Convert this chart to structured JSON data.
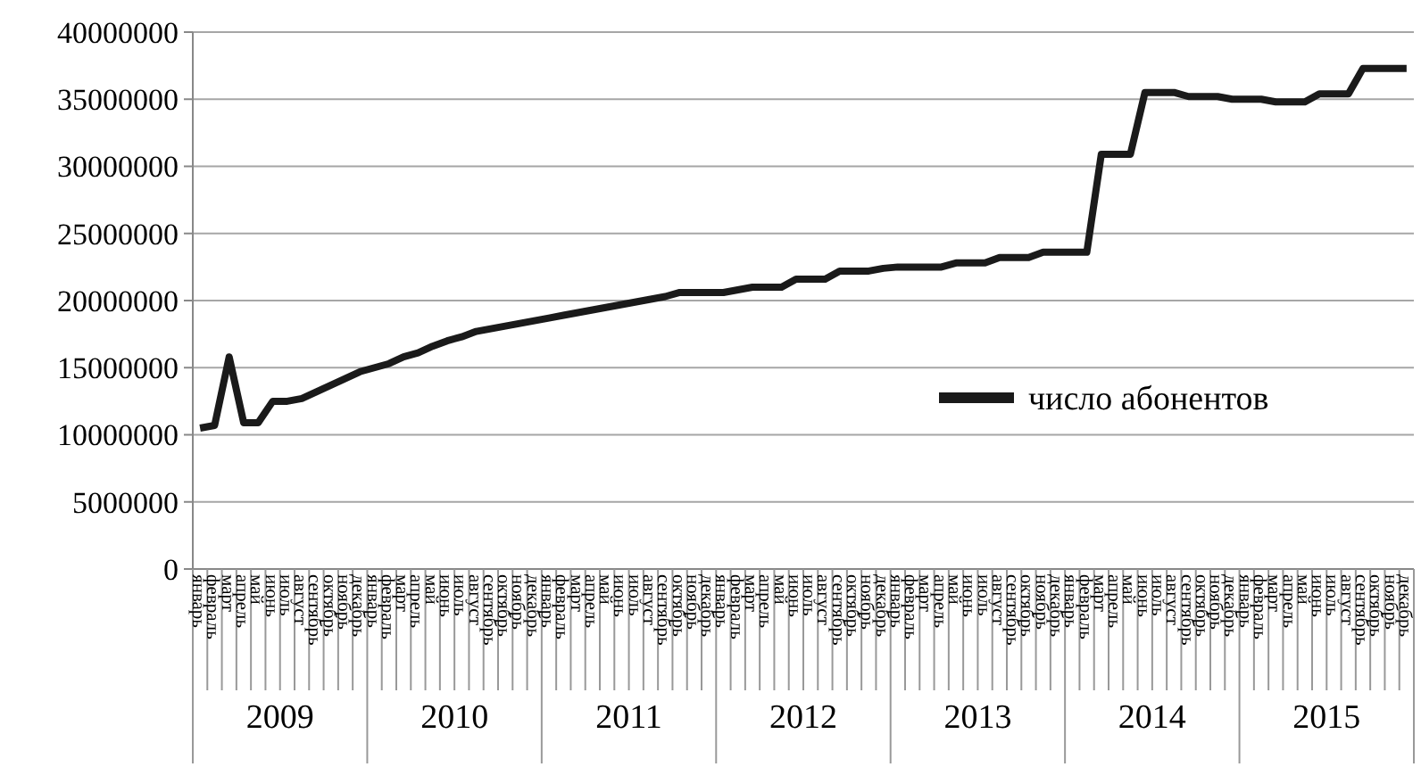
{
  "chart_data": {
    "type": "line",
    "categories": [
      "январь",
      "февраль",
      "март",
      "апрель",
      "май",
      "июнь",
      "июль",
      "август",
      "сентябрь",
      "октябрь",
      "ноябрь",
      "декабрь",
      "январь",
      "февраль",
      "март",
      "апрель",
      "май",
      "июнь",
      "июль",
      "август",
      "сентябрь",
      "октябрь",
      "ноябрь",
      "декабрь",
      "январь",
      "февраль",
      "март",
      "апрель",
      "май",
      "июнь",
      "июль",
      "август",
      "сентябрь",
      "октябрь",
      "ноябрь",
      "декабрь",
      "январь",
      "февраль",
      "март",
      "апрель",
      "май",
      "июнь",
      "июль",
      "август",
      "сентябрь",
      "октябрь",
      "ноябрь",
      "декабрь",
      "январь",
      "февраль",
      "март",
      "апрель",
      "май",
      "июнь",
      "июль",
      "август",
      "сентябрь",
      "октябрь",
      "ноябрь",
      "декабрь",
      "январь",
      "февраль",
      "март",
      "апрель",
      "май",
      "июнь",
      "июль",
      "август",
      "сентябрь",
      "октябрь",
      "ноябрь",
      "декабрь",
      "январь",
      "февраль",
      "март",
      "апрель",
      "май",
      "июнь",
      "июль",
      "август",
      "сентябрь",
      "октябрь",
      "ноябрь",
      "декабрь"
    ],
    "series": [
      {
        "name": "число абонентов",
        "color": "#1a1a1a",
        "values": [
          10500000,
          10700000,
          15800000,
          10900000,
          10900000,
          12500000,
          12500000,
          12700000,
          13200000,
          13700000,
          14200000,
          14700000,
          15000000,
          15300000,
          15800000,
          16100000,
          16600000,
          17000000,
          17300000,
          17700000,
          17900000,
          18100000,
          18300000,
          18500000,
          18700000,
          18900000,
          19100000,
          19300000,
          19500000,
          19700000,
          19900000,
          20100000,
          20300000,
          20600000,
          20600000,
          20600000,
          20600000,
          20800000,
          21000000,
          21000000,
          21000000,
          21600000,
          21600000,
          21600000,
          22200000,
          22200000,
          22200000,
          22400000,
          22500000,
          22500000,
          22500000,
          22500000,
          22800000,
          22800000,
          22800000,
          23200000,
          23200000,
          23200000,
          23600000,
          23600000,
          23600000,
          23600000,
          30900000,
          30900000,
          30900000,
          35500000,
          35500000,
          35500000,
          35200000,
          35200000,
          35200000,
          35000000,
          35000000,
          35000000,
          34800000,
          34800000,
          34800000,
          35400000,
          35400000,
          35400000,
          37300000,
          37300000,
          37300000,
          37300000
        ]
      }
    ],
    "ylim": [
      0,
      40000000
    ],
    "yticks": [
      0,
      5000000,
      10000000,
      15000000,
      20000000,
      25000000,
      30000000,
      35000000,
      40000000
    ],
    "grid": "y",
    "legend": "right",
    "line_style": "solid",
    "annotations": [
      "2009",
      "2010",
      "2011",
      "2012",
      "2013",
      "2014",
      "2015"
    ]
  }
}
